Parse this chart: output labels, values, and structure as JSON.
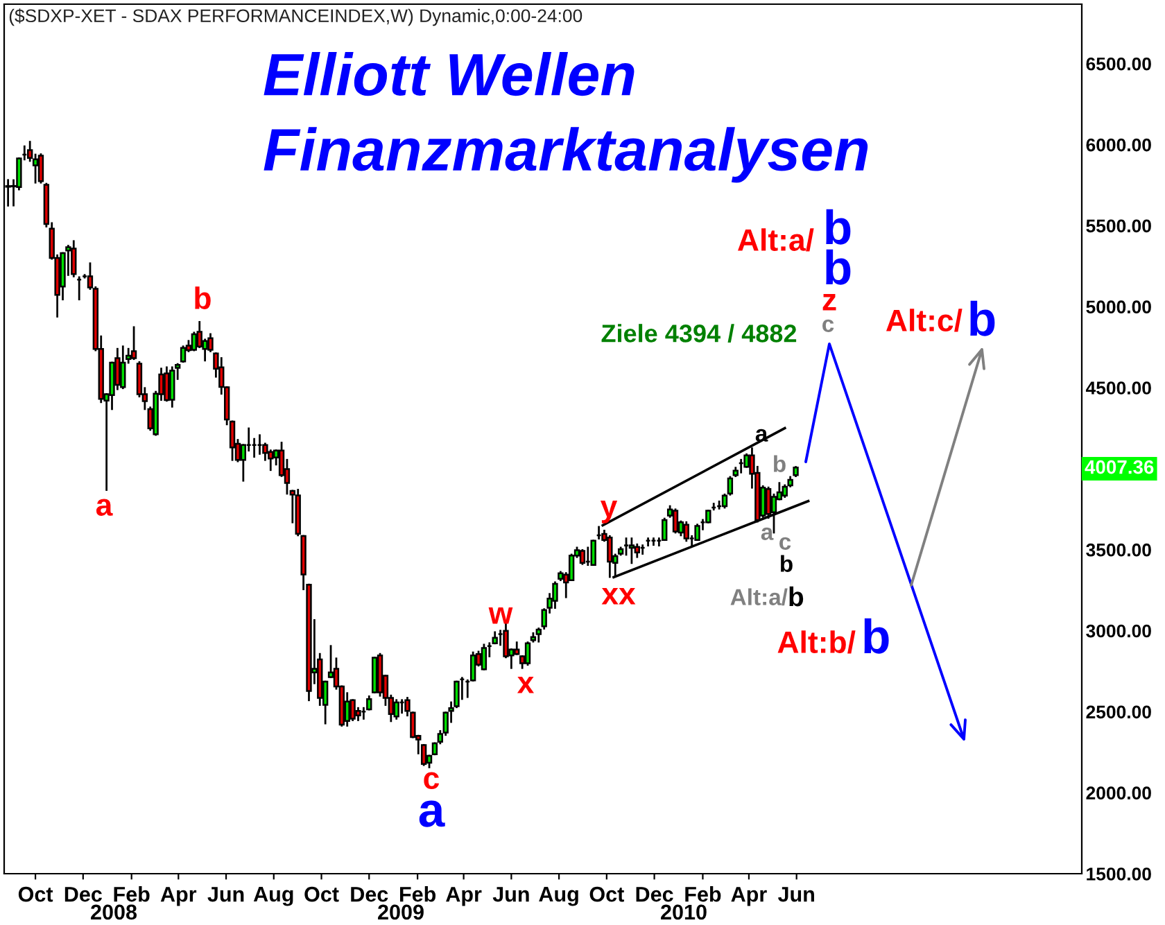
{
  "chart_data": {
    "type": "candlestick",
    "title": "($SDXP-XET - SDAX PERFORMANCEINDEX,W) Dynamic,0:00-24:00",
    "subtitle": "Elliott Wellen\nFinanzmarktanalysen",
    "xlim": [
      "2007-08-22",
      "2011-06-01"
    ],
    "ylim": [
      1500,
      6867
    ],
    "xticks": [
      {
        "value": "2007-10-01",
        "label": "Oct"
      },
      {
        "value": "2007-12-01",
        "label": "Dec"
      },
      {
        "value": "2008-02-01",
        "label": "Feb"
      },
      {
        "value": "2008-04-01",
        "label": "Apr"
      },
      {
        "value": "2008-06-01",
        "label": "Jun"
      },
      {
        "value": "2008-08-01",
        "label": "Aug"
      },
      {
        "value": "2008-10-01",
        "label": "Oct"
      },
      {
        "value": "2008-12-01",
        "label": "Dec"
      },
      {
        "value": "2009-02-01",
        "label": "Feb"
      },
      {
        "value": "2009-04-01",
        "label": "Apr"
      },
      {
        "value": "2009-06-01",
        "label": "Jun"
      },
      {
        "value": "2009-08-01",
        "label": "Aug"
      },
      {
        "value": "2009-10-01",
        "label": "Oct"
      },
      {
        "value": "2009-12-01",
        "label": "Dec"
      },
      {
        "value": "2010-02-01",
        "label": "Feb"
      },
      {
        "value": "2010-04-01",
        "label": "Apr"
      },
      {
        "value": "2010-06-01",
        "label": "Jun"
      }
    ],
    "yticks": [
      {
        "value": 1500,
        "label": "1500.00"
      },
      {
        "value": 2000,
        "label": "2000.00"
      },
      {
        "value": 2500,
        "label": "2500.00"
      },
      {
        "value": 3000,
        "label": "3000.00"
      },
      {
        "value": 3500,
        "label": "3500.00"
      },
      {
        "value": 4500,
        "label": "4500.00"
      },
      {
        "value": 5000,
        "label": "5000.00"
      },
      {
        "value": 5500,
        "label": "5500.00"
      },
      {
        "value": 6000,
        "label": "6000.00"
      },
      {
        "value": 6500,
        "label": "6500.00"
      }
    ],
    "grid": false,
    "legend": false,
    "series": [
      {
        "x": [
          "2007-08-27",
          "2007-09-03",
          "2007-09-10",
          "2007-09-17",
          "2007-09-24",
          "2007-10-01",
          "2007-10-08",
          "2007-10-15",
          "2007-10-22",
          "2007-10-29",
          "2007-11-05",
          "2007-11-12",
          "2007-11-19",
          "2007-11-26",
          "2007-12-03",
          "2007-12-10",
          "2007-12-17",
          "2007-12-24",
          "2007-12-31",
          "2008-01-07",
          "2008-01-14",
          "2008-01-21",
          "2008-01-28",
          "2008-02-04",
          "2008-02-11",
          "2008-02-18",
          "2008-02-25",
          "2008-03-03",
          "2008-03-10",
          "2008-03-17",
          "2008-03-24",
          "2008-03-31",
          "2008-04-07",
          "2008-04-14",
          "2008-04-21",
          "2008-04-28",
          "2008-05-05",
          "2008-05-12",
          "2008-05-19",
          "2008-05-26",
          "2008-06-02",
          "2008-06-09",
          "2008-06-16",
          "2008-06-23",
          "2008-06-30",
          "2008-07-07",
          "2008-07-14",
          "2008-07-21",
          "2008-07-28",
          "2008-08-04",
          "2008-08-11",
          "2008-08-18",
          "2008-08-25",
          "2008-09-01",
          "2008-09-08",
          "2008-09-15",
          "2008-09-22",
          "2008-09-29",
          "2008-10-06",
          "2008-10-13",
          "2008-10-20",
          "2008-10-27",
          "2008-11-03",
          "2008-11-10",
          "2008-11-17",
          "2008-11-24",
          "2008-12-01",
          "2008-12-08",
          "2008-12-15",
          "2008-12-22",
          "2008-12-29",
          "2009-01-05",
          "2009-01-12",
          "2009-01-19",
          "2009-01-26",
          "2009-02-02",
          "2009-02-09",
          "2009-02-16",
          "2009-02-23",
          "2009-03-02",
          "2009-03-09",
          "2009-03-16",
          "2009-03-23",
          "2009-03-30",
          "2009-04-06",
          "2009-04-13",
          "2009-04-20",
          "2009-04-27",
          "2009-05-04",
          "2009-05-11",
          "2009-05-18",
          "2009-05-25",
          "2009-06-01",
          "2009-06-08",
          "2009-06-15",
          "2009-06-22",
          "2009-06-29",
          "2009-07-06",
          "2009-07-13",
          "2009-07-20",
          "2009-07-27",
          "2009-08-03",
          "2009-08-10",
          "2009-08-17",
          "2009-08-24",
          "2009-08-31",
          "2009-09-07",
          "2009-09-14",
          "2009-09-21",
          "2009-09-28",
          "2009-10-05",
          "2009-10-12",
          "2009-10-19",
          "2009-10-26",
          "2009-11-02",
          "2009-11-09",
          "2009-11-16",
          "2009-11-23",
          "2009-11-30",
          "2009-12-07",
          "2009-12-14",
          "2009-12-21",
          "2009-12-28",
          "2010-01-04",
          "2010-01-11",
          "2010-01-18",
          "2010-01-25",
          "2010-02-01",
          "2010-02-08",
          "2010-02-15",
          "2010-02-22",
          "2010-03-01",
          "2010-03-08",
          "2010-03-15",
          "2010-03-22",
          "2010-03-29",
          "2010-04-05",
          "2010-04-12",
          "2010-04-19",
          "2010-04-26",
          "2010-05-03",
          "2010-05-10",
          "2010-05-17",
          "2010-05-24",
          "2010-05-31"
        ],
        "ohlc": [
          [
            5744,
            5781,
            5624,
            5740
          ],
          [
            5742,
            5780,
            5625,
            5745
          ],
          [
            5738,
            5915,
            5724,
            5915
          ],
          [
            5938,
            5989,
            5909,
            5938
          ],
          [
            5966,
            6017,
            5900,
            5918
          ],
          [
            5872,
            5938,
            5766,
            5909
          ],
          [
            5932,
            5940,
            5766,
            5775
          ],
          [
            5752,
            5758,
            5495,
            5510
          ],
          [
            5481,
            5515,
            5296,
            5301
          ],
          [
            5301,
            5316,
            4939,
            5073
          ],
          [
            5124,
            5330,
            5045,
            5330
          ],
          [
            5347,
            5375,
            5196,
            5367
          ],
          [
            5358,
            5404,
            5187,
            5201
          ],
          [
            5167,
            5181,
            5045,
            5167
          ],
          [
            5187,
            5195,
            5180,
            5187
          ],
          [
            5187,
            5267,
            5110,
            5119
          ],
          [
            5110,
            5119,
            4731,
            4739
          ],
          [
            4739,
            4816,
            4411,
            4431
          ],
          [
            4420,
            4460,
            3869,
            4460
          ],
          [
            4454,
            4654,
            4368,
            4654
          ],
          [
            4682,
            4739,
            4491,
            4517
          ],
          [
            4503,
            4754,
            4497,
            4654
          ],
          [
            4677,
            4739,
            4654,
            4697
          ],
          [
            4725,
            4873,
            4677,
            4682
          ],
          [
            4648,
            4657,
            4446,
            4460
          ],
          [
            4460,
            4497,
            4368,
            4417
          ],
          [
            4368,
            4377,
            4240,
            4249
          ],
          [
            4212,
            4474,
            4209,
            4463
          ],
          [
            4582,
            4617,
            4425,
            4460
          ],
          [
            4588,
            4625,
            4420,
            4423
          ],
          [
            4425,
            4625,
            4383,
            4605
          ],
          [
            4622,
            4645,
            4554,
            4640
          ],
          [
            4662,
            4754,
            4660,
            4745
          ],
          [
            4759,
            4788,
            4725,
            4731
          ],
          [
            4734,
            4839,
            4731,
            4830
          ],
          [
            4845,
            4905,
            4750,
            4754
          ],
          [
            4739,
            4796,
            4668,
            4788
          ],
          [
            4805,
            4830,
            4725,
            4734
          ],
          [
            4711,
            4711,
            4568,
            4617
          ],
          [
            4625,
            4682,
            4463,
            4505
          ],
          [
            4502,
            4502,
            4274,
            4303
          ],
          [
            4291,
            4291,
            4054,
            4131
          ],
          [
            4154,
            4177,
            4046,
            4054
          ],
          [
            4054,
            4146,
            3926,
            4146
          ],
          [
            4146,
            4248,
            4112,
            4146
          ],
          [
            4146,
            4183,
            4074,
            4146
          ],
          [
            4146,
            4206,
            4092,
            4146
          ],
          [
            4146,
            4154,
            4054,
            4097
          ],
          [
            4103,
            4112,
            3992,
            4063
          ],
          [
            4069,
            4112,
            4026,
            4112
          ],
          [
            4112,
            4160,
            3955,
            3960
          ],
          [
            3997,
            4054,
            3846,
            3912
          ],
          [
            3863,
            3863,
            3669,
            3840
          ],
          [
            3835,
            3869,
            3589,
            3598
          ],
          [
            3584,
            3584,
            3256,
            3347
          ],
          [
            3284,
            3284,
            2571,
            2628
          ],
          [
            2742,
            3065,
            2676,
            2765
          ],
          [
            2822,
            2856,
            2542,
            2585
          ],
          [
            2542,
            2685,
            2428,
            2685
          ],
          [
            2713,
            2905,
            2713,
            2742
          ],
          [
            2765,
            2828,
            2642,
            2656
          ],
          [
            2656,
            2656,
            2414,
            2420
          ],
          [
            2443,
            2614,
            2414,
            2562
          ],
          [
            2571,
            2571,
            2448,
            2457
          ],
          [
            2505,
            2522,
            2448,
            2477
          ],
          [
            2500,
            2522,
            2457,
            2500
          ],
          [
            2514,
            2594,
            2514,
            2577
          ],
          [
            2619,
            2833,
            2619,
            2833
          ],
          [
            2847,
            2856,
            2599,
            2619
          ],
          [
            2722,
            2722,
            2542,
            2585
          ],
          [
            2585,
            2599,
            2442,
            2485
          ],
          [
            2471,
            2571,
            2457,
            2557
          ],
          [
            2557,
            2571,
            2494,
            2557
          ],
          [
            2571,
            2585,
            2477,
            2505
          ],
          [
            2494,
            2494,
            2343,
            2343
          ],
          [
            2351,
            2351,
            2243,
            2328
          ],
          [
            2294,
            2294,
            2171,
            2177
          ],
          [
            2185,
            2228,
            2157,
            2228
          ],
          [
            2237,
            2305,
            2237,
            2305
          ],
          [
            2314,
            2380,
            2305,
            2362
          ],
          [
            2371,
            2494,
            2357,
            2494
          ],
          [
            2505,
            2557,
            2437,
            2522
          ],
          [
            2534,
            2685,
            2528,
            2685
          ],
          [
            2699,
            2708,
            2579,
            2699
          ],
          [
            2685,
            2693,
            2591,
            2685
          ],
          [
            2693,
            2865,
            2693,
            2847
          ],
          [
            2856,
            2870,
            2785,
            2790
          ],
          [
            2762,
            2913,
            2762,
            2893
          ],
          [
            2905,
            2922,
            2842,
            2905
          ],
          [
            2922,
            2990,
            2922,
            2956
          ],
          [
            2979,
            2999,
            2913,
            2979
          ],
          [
            2999,
            3041,
            2836,
            2842
          ],
          [
            2847,
            2884,
            2770,
            2884
          ],
          [
            2884,
            2927,
            2856,
            2856
          ],
          [
            2842,
            2842,
            2770,
            2799
          ],
          [
            2799,
            2927,
            2790,
            2922
          ],
          [
            2941,
            2984,
            2933,
            2961
          ],
          [
            2979,
            3013,
            2933,
            3007
          ],
          [
            3027,
            3132,
            3013,
            3127
          ],
          [
            3141,
            3226,
            3112,
            3198
          ],
          [
            3184,
            3298,
            3141,
            3289
          ],
          [
            3320,
            3362,
            3312,
            3354
          ],
          [
            3346,
            3355,
            3207,
            3298
          ],
          [
            3312,
            3469,
            3312,
            3463
          ],
          [
            3463,
            3512,
            3455,
            3497
          ],
          [
            3492,
            3497,
            3412,
            3418
          ],
          [
            3426,
            3512,
            3406,
            3426
          ],
          [
            3406,
            3555,
            3406,
            3555
          ],
          [
            3589,
            3640,
            3569,
            3589
          ],
          [
            3597,
            3617,
            3555,
            3560
          ],
          [
            3575,
            3583,
            3332,
            3426
          ],
          [
            3418,
            3469,
            3341,
            3460
          ],
          [
            3475,
            3512,
            3469,
            3503
          ],
          [
            3526,
            3569,
            3469,
            3526
          ],
          [
            3512,
            3569,
            3418,
            3526
          ],
          [
            3517,
            3532,
            3455,
            3483
          ],
          [
            3512,
            3526,
            3475,
            3512
          ],
          [
            3555,
            3569,
            3526,
            3555
          ],
          [
            3555,
            3569,
            3530,
            3555
          ],
          [
            3555,
            3569,
            3526,
            3555
          ],
          [
            3560,
            3691,
            3560,
            3683
          ],
          [
            3711,
            3768,
            3703,
            3748
          ],
          [
            3740,
            3748,
            3606,
            3612
          ],
          [
            3606,
            3674,
            3589,
            3669
          ],
          [
            3654,
            3669,
            3555,
            3569
          ],
          [
            3569,
            3583,
            3526,
            3569
          ],
          [
            3560,
            3654,
            3560,
            3646
          ],
          [
            3669,
            3683,
            3626,
            3669
          ],
          [
            3669,
            3740,
            3669,
            3740
          ],
          [
            3760,
            3783,
            3748,
            3760
          ],
          [
            3768,
            3797,
            3754,
            3768
          ],
          [
            3768,
            3840,
            3760,
            3834
          ],
          [
            3846,
            3948,
            3840,
            3940
          ],
          [
            3960,
            4005,
            3954,
            3988
          ],
          [
            4034,
            4054,
            3977,
            4034
          ],
          [
            4011,
            4088,
            4011,
            4082
          ],
          [
            4082,
            4125,
            3883,
            3968
          ],
          [
            3974,
            4011,
            3674,
            3683
          ],
          [
            3711,
            3891,
            3703,
            3883
          ],
          [
            3874,
            3883,
            3697,
            3720
          ],
          [
            3731,
            3840,
            3606,
            3826
          ],
          [
            3811,
            3911,
            3811,
            3854
          ],
          [
            3834,
            3897,
            3826,
            3888
          ],
          [
            3897,
            3948,
            3891,
            3931
          ],
          [
            3960,
            4010,
            3954,
            4007.36
          ]
        ]
      },
      {
        "type": "line",
        "color": "#000000",
        "x": [
          "2009-09-26",
          "2010-05-17"
        ],
        "values": [
          3650,
          4250
        ]
      },
      {
        "type": "line",
        "color": "#000000",
        "x": [
          "2009-10-10",
          "2010-06-16"
        ],
        "values": [
          3330,
          3800
        ]
      }
    ],
    "annotations": [
      "a",
      "b",
      "c",
      "a",
      "w",
      "x",
      "y",
      "xx",
      "a",
      "b",
      "a",
      "c",
      "b",
      "Alt:a/",
      "b",
      "Alt:b/",
      "b",
      "Ziele 4394 / 4882",
      "Alt:a/",
      "b",
      "b",
      "z",
      "c",
      "Alt:c/",
      "b",
      "4007.36",
      "2008",
      "2009",
      "2010"
    ]
  }
}
